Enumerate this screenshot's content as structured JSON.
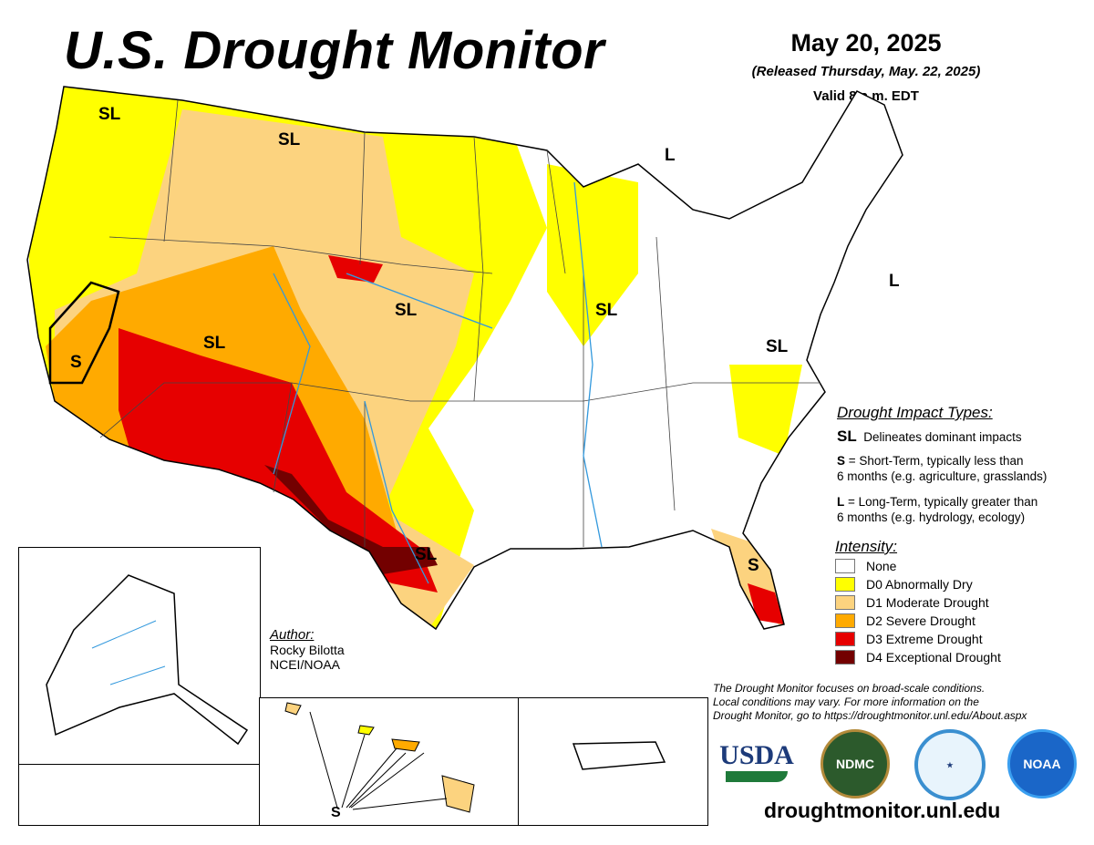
{
  "header": {
    "title": "U.S. Drought Monitor",
    "date": "May 20, 2025",
    "released": "(Released Thursday, May. 22, 2025)",
    "valid": "Valid 8 a.m. EDT"
  },
  "map_labels": [
    {
      "text": "SL",
      "region": "Washington"
    },
    {
      "text": "SL",
      "region": "Montana"
    },
    {
      "text": "L",
      "region": "Michigan"
    },
    {
      "text": "L",
      "region": "New Jersey / New York"
    },
    {
      "text": "SL",
      "region": "Nebraska"
    },
    {
      "text": "SL",
      "region": "Iowa / Illinois"
    },
    {
      "text": "SL",
      "region": "Utah"
    },
    {
      "text": "S",
      "region": "California"
    },
    {
      "text": "SL",
      "region": "Virginia / Maryland"
    },
    {
      "text": "SL",
      "region": "Texas"
    },
    {
      "text": "S",
      "region": "Florida"
    },
    {
      "text": "S",
      "region": "Hawaii"
    }
  ],
  "impact_types": {
    "heading": "Drought Impact Types:",
    "symbol": "SL",
    "delineates": "Delineates dominant impacts",
    "s_key": "S",
    "s_text": "= Short-Term, typically less than",
    "s_text2": "6 months (e.g. agriculture, grasslands)",
    "l_key": "L",
    "l_text": "= Long-Term, typically greater than",
    "l_text2": "6 months (e.g. hydrology, ecology)"
  },
  "intensity": {
    "heading": "Intensity:",
    "levels": [
      {
        "label": "None",
        "color": "#ffffff"
      },
      {
        "label": "D0 Abnormally Dry",
        "color": "#ffff00"
      },
      {
        "label": "D1 Moderate Drought",
        "color": "#fcd37f"
      },
      {
        "label": "D2 Severe Drought",
        "color": "#ffaa00"
      },
      {
        "label": "D3 Extreme Drought",
        "color": "#e60000"
      },
      {
        "label": "D4 Exceptional Drought",
        "color": "#730000"
      }
    ]
  },
  "author": {
    "heading": "Author:",
    "name": "Rocky Bilotta",
    "org": "NCEI/NOAA"
  },
  "disclaimer": [
    "The Drought Monitor focuses on broad-scale conditions.",
    "Local conditions may vary. For more information on the",
    "Drought Monitor, go to https://droughtmonitor.unl.edu/About.aspx"
  ],
  "logos": {
    "usda": "USDA",
    "ndmc": "NDMC",
    "doc": "Department of Commerce",
    "noaa": "NOAA"
  },
  "url": "droughtmonitor.unl.edu"
}
